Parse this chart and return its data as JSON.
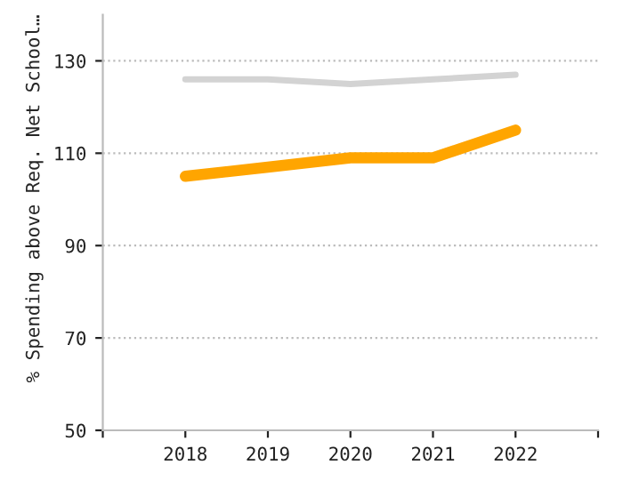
{
  "chart_data": {
    "type": "line",
    "ylabel": "% Spending above Req. Net School…",
    "x": [
      2018,
      2019,
      2020,
      2021,
      2022
    ],
    "series": [
      {
        "color": "#d3d3d3",
        "values": [
          126,
          126,
          125,
          126,
          127
        ]
      },
      {
        "color": "#ffa500",
        "values": [
          105,
          107,
          109,
          109,
          115
        ]
      }
    ],
    "xlim": [
      2017,
      2023
    ],
    "xticks": [
      {
        "value": 2017,
        "label": null
      },
      2018,
      2019,
      2020,
      2021,
      2022,
      {
        "value": 2023,
        "label": null
      }
    ],
    "ylim": [
      50,
      140
    ],
    "yticks": [
      50,
      70,
      90,
      110,
      130
    ],
    "grid": "y",
    "legend": false
  }
}
